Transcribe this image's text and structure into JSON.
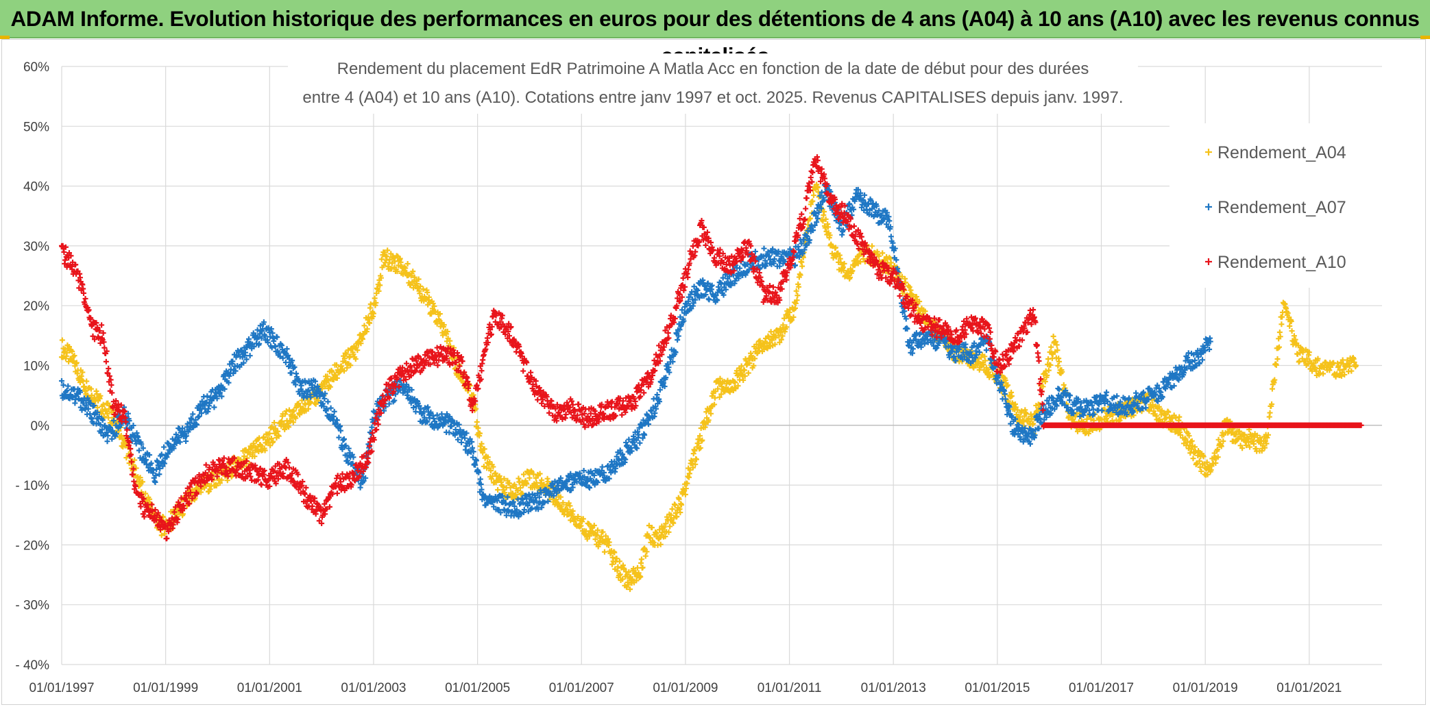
{
  "banner": {
    "title": "ADAM Informe. Evolution historique des performances en euros pour des détentions de 4 ans (A04) à 10 ans (A10) avec les revenus connus capitalisés"
  },
  "colors": {
    "banner_bg": "#8fd17f",
    "A04": "#f5c21b",
    "A07": "#1f77c4",
    "A10": "#e8141b",
    "grid": "#d9d9d9"
  },
  "chart_data": {
    "type": "scatter",
    "title_lines": [
      "Rendement du placement EdR Patrimoine A Matla Acc en fonction de la date de début pour des durées",
      "entre 4 (A04) et 10 ans (A10). Cotations entre janv 1997 et oct. 2025. Revenus CAPITALISES depuis janv. 1997."
    ],
    "xlabel": "",
    "ylabel": "",
    "xlim": [
      1997.0,
      2022.4
    ],
    "ylim": [
      -40,
      60
    ],
    "y_ticks": [
      60,
      50,
      40,
      30,
      20,
      10,
      0,
      -10,
      -20,
      -30,
      -40
    ],
    "y_tick_labels": [
      "60%",
      "50%",
      "40%",
      "30%",
      "20%",
      "10%",
      "0%",
      "- 10%",
      "- 20%",
      "- 30%",
      "- 40%"
    ],
    "x_ticks": [
      1997,
      1999,
      2001,
      2003,
      2005,
      2007,
      2009,
      2011,
      2013,
      2015,
      2017,
      2019,
      2021
    ],
    "x_tick_labels": [
      "01/01/1997",
      "01/01/1999",
      "01/01/2001",
      "01/01/2003",
      "01/01/2005",
      "01/01/2007",
      "01/01/2009",
      "01/01/2011",
      "01/01/2013",
      "01/01/2015",
      "01/01/2017",
      "01/01/2019",
      "01/01/2021"
    ],
    "grid": true,
    "marker": "+",
    "legend_position": "right",
    "series": [
      {
        "name": "Rendement_A04",
        "color": "#f5c21b",
        "x": [
          1997.0,
          1997.2,
          1997.5,
          1997.8,
          1998.0,
          1998.3,
          1998.6,
          1998.9,
          1999.1,
          1999.4,
          1999.7,
          2000.0,
          2000.3,
          2000.6,
          2000.9,
          2001.2,
          2001.5,
          2001.8,
          2002.1,
          2002.4,
          2002.7,
          2003.0,
          2003.2,
          2003.5,
          2003.8,
          2004.1,
          2004.4,
          2004.6,
          2004.9,
          2005.1,
          2005.4,
          2005.7,
          2006.0,
          2006.3,
          2006.6,
          2006.9,
          2007.2,
          2007.5,
          2007.7,
          2007.9,
          2008.1,
          2008.3,
          2008.5,
          2008.7,
          2008.9,
          2009.0,
          2009.3,
          2009.6,
          2009.9,
          2010.2,
          2010.5,
          2010.8,
          2011.1,
          2011.3,
          2011.5,
          2011.8,
          2012.1,
          2012.4,
          2012.7,
          2013.0,
          2013.3,
          2013.6,
          2013.9,
          2014.2,
          2014.5,
          2014.8,
          2015.1,
          2015.4,
          2015.7,
          2015.9,
          2016.1,
          2016.4,
          2016.7,
          2017.0,
          2017.3,
          2017.6,
          2017.9,
          2018.2,
          2018.5,
          2018.8,
          2019.1,
          2019.4,
          2019.7,
          2019.9,
          2020.1,
          2020.2,
          2020.5,
          2020.8,
          2021.1,
          2021.4,
          2021.7,
          2021.9
        ],
        "y": [
          13,
          11,
          6,
          3,
          1,
          -5,
          -12,
          -17,
          -16,
          -13,
          -10,
          -9,
          -7,
          -5,
          -3,
          0,
          2,
          4,
          7,
          10,
          13,
          20,
          28,
          27,
          24,
          20,
          15,
          10,
          5,
          -5,
          -10,
          -11,
          -9,
          -10,
          -13,
          -16,
          -18,
          -20,
          -24,
          -26,
          -25,
          -18,
          -19,
          -16,
          -13,
          -10,
          -2,
          6,
          7,
          10,
          14,
          15,
          20,
          30,
          40,
          30,
          25,
          29,
          28,
          26,
          22,
          18,
          15,
          12,
          11,
          10,
          7,
          2,
          0,
          8,
          14,
          1,
          0,
          1,
          2,
          3,
          4,
          1,
          0,
          -5,
          -8,
          0,
          -3,
          -2,
          -4,
          -1,
          20,
          12,
          10,
          9,
          10,
          10
        ]
      },
      {
        "name": "Rendement_A07",
        "color": "#1f77c4",
        "x": [
          1997.0,
          1997.3,
          1997.6,
          1997.9,
          1998.2,
          1998.5,
          1998.8,
          1999.1,
          1999.4,
          1999.7,
          2000.0,
          2000.3,
          2000.6,
          2000.9,
          2001.1,
          2001.3,
          2001.6,
          2001.9,
          2002.2,
          2002.5,
          2002.8,
          2003.0,
          2003.3,
          2003.6,
          2003.9,
          2004.2,
          2004.5,
          2004.7,
          2004.9,
          2005.1,
          2005.4,
          2005.7,
          2006.0,
          2006.3,
          2006.6,
          2006.9,
          2007.2,
          2007.5,
          2007.8,
          2008.1,
          2008.4,
          2008.7,
          2009.0,
          2009.3,
          2009.6,
          2009.9,
          2010.2,
          2010.5,
          2010.8,
          2011.1,
          2011.4,
          2011.7,
          2012.0,
          2012.3,
          2012.6,
          2012.9,
          2013.1,
          2013.3,
          2013.6,
          2013.9,
          2014.2,
          2014.5,
          2014.8,
          2015.0,
          2015.3,
          2015.6,
          2015.9,
          2016.2,
          2016.5,
          2016.8,
          2017.1,
          2017.4,
          2017.7,
          2018.0,
          2018.3,
          2018.6,
          2018.9,
          2019.1
        ],
        "y": [
          6,
          5,
          2,
          -2,
          2,
          -4,
          -8,
          -3,
          -1,
          3,
          5,
          10,
          13,
          16,
          14,
          12,
          6,
          6,
          2,
          -5,
          -10,
          2,
          5,
          7,
          2,
          1,
          0,
          -2,
          -4,
          -12,
          -13,
          -14,
          -13,
          -12,
          -10,
          -9,
          -9,
          -8,
          -5,
          -2,
          3,
          10,
          20,
          23,
          22,
          25,
          27,
          28,
          28,
          28,
          32,
          40,
          33,
          38,
          36,
          34,
          25,
          13,
          15,
          14,
          12,
          12,
          14,
          8,
          0,
          -2,
          2,
          5,
          3,
          3,
          4,
          3,
          4,
          5,
          7,
          10,
          12,
          14
        ]
      },
      {
        "name": "Rendement_A10",
        "color": "#e8141b",
        "x": [
          1997.0,
          1997.2,
          1997.4,
          1997.6,
          1997.8,
          1998.0,
          1998.2,
          1998.4,
          1998.6,
          1998.8,
          1999.0,
          1999.2,
          1999.5,
          1999.8,
          2000.1,
          2000.4,
          2000.7,
          2001.0,
          2001.3,
          2001.5,
          2001.7,
          2002.0,
          2002.3,
          2002.6,
          2002.9,
          2003.2,
          2003.5,
          2003.8,
          2004.1,
          2004.4,
          2004.7,
          2004.9,
          2005.1,
          2005.3,
          2005.6,
          2005.9,
          2006.2,
          2006.5,
          2006.8,
          2007.1,
          2007.4,
          2007.7,
          2008.0,
          2008.3,
          2008.6,
          2008.9,
          2009.1,
          2009.3,
          2009.6,
          2009.9,
          2010.2,
          2010.5,
          2010.8,
          2011.1,
          2011.3,
          2011.5,
          2011.8,
          2012.1,
          2012.4,
          2012.7,
          2013.0,
          2013.3,
          2013.6,
          2013.9,
          2014.2,
          2014.5,
          2014.8,
          2015.0,
          2015.2,
          2015.4,
          2015.7,
          2015.9,
          2016.2,
          2017.0,
          2018.0,
          2019.0,
          2020.0,
          2021.0,
          2022.0
        ],
        "y": [
          29,
          27,
          23,
          16,
          15,
          3,
          2,
          -10,
          -14,
          -15,
          -18,
          -15,
          -11,
          -8,
          -7,
          -7,
          -8,
          -9,
          -7,
          -9,
          -12,
          -15,
          -10,
          -9,
          -5,
          5,
          8,
          10,
          11,
          12,
          10,
          3,
          10,
          18,
          16,
          10,
          5,
          2,
          3,
          1,
          2,
          3,
          4,
          8,
          14,
          22,
          28,
          33,
          28,
          27,
          30,
          22,
          22,
          30,
          36,
          45,
          37,
          35,
          30,
          26,
          25,
          20,
          17,
          16,
          15,
          17,
          16,
          10,
          11,
          14,
          19,
          0,
          0,
          0,
          0,
          0,
          0,
          0,
          0
        ]
      }
    ]
  }
}
